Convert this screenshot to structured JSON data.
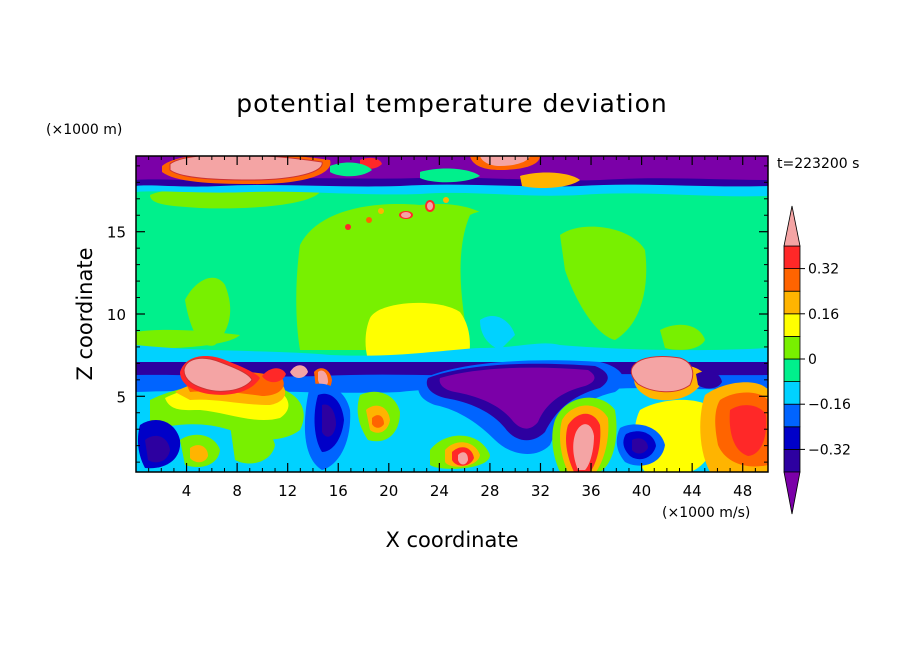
{
  "chart_data": {
    "type": "heatmap",
    "title": "potential temperature deviation",
    "xlabel": "X coordinate",
    "ylabel": "Z coordinate",
    "x_unit": "(×1000 m/s)",
    "y_unit": "(×1000 m)",
    "time_label": "t=223200 s",
    "xlim": [
      0,
      50
    ],
    "ylim": [
      0.4,
      19.6
    ],
    "x_ticks": [
      4,
      8,
      12,
      16,
      20,
      24,
      28,
      32,
      36,
      40,
      44,
      48
    ],
    "y_ticks": [
      5,
      10,
      15
    ],
    "colorbar": {
      "levels": [
        -0.4,
        -0.32,
        -0.24,
        -0.16,
        -0.08,
        0,
        0.08,
        0.16,
        0.24,
        0.32,
        0.4
      ],
      "tick_labels": [
        "0.32",
        "0.16",
        "0",
        "−0.16",
        "−0.32"
      ],
      "tick_values": [
        0.32,
        0.16,
        0,
        -0.16,
        -0.32
      ],
      "colors": [
        "#7b00a8",
        "#2d00a0",
        "#0000c8",
        "#0064ff",
        "#00d2ff",
        "#00f08c",
        "#78f000",
        "#ffff00",
        "#ffb400",
        "#ff6400",
        "#ff2828",
        "#f4a4a4"
      ]
    },
    "field": [
      {
        "x": 0,
        "z": 19,
        "v": -0.45
      },
      {
        "x": 8,
        "z": 19,
        "v": 0.45
      },
      {
        "x": 24,
        "z": 19,
        "v": -0.45
      },
      {
        "x": 40,
        "z": 19,
        "v": -0.45
      },
      {
        "x": 16,
        "z": 17,
        "v": 0.0
      },
      {
        "x": 25,
        "z": 11,
        "v": 0.16
      },
      {
        "x": 25,
        "z": 13,
        "v": 0.08
      },
      {
        "x": 43,
        "z": 13,
        "v": 0.08
      },
      {
        "x": 6,
        "z": 6.3,
        "v": 0.45
      },
      {
        "x": 32,
        "z": 5.5,
        "v": -0.45
      },
      {
        "x": 42,
        "z": 6.3,
        "v": 0.45
      },
      {
        "x": 35,
        "z": 2,
        "v": 0.45
      },
      {
        "x": 26,
        "z": 1.2,
        "v": 0.45
      },
      {
        "x": 40,
        "z": 1.8,
        "v": -0.4
      },
      {
        "x": 48,
        "z": 3,
        "v": 0.32
      },
      {
        "x": 2,
        "z": 1.5,
        "v": -0.4
      },
      {
        "x": 15,
        "z": 3.5,
        "v": -0.4
      },
      {
        "x": 19,
        "z": 3,
        "v": 0.24
      }
    ]
  }
}
